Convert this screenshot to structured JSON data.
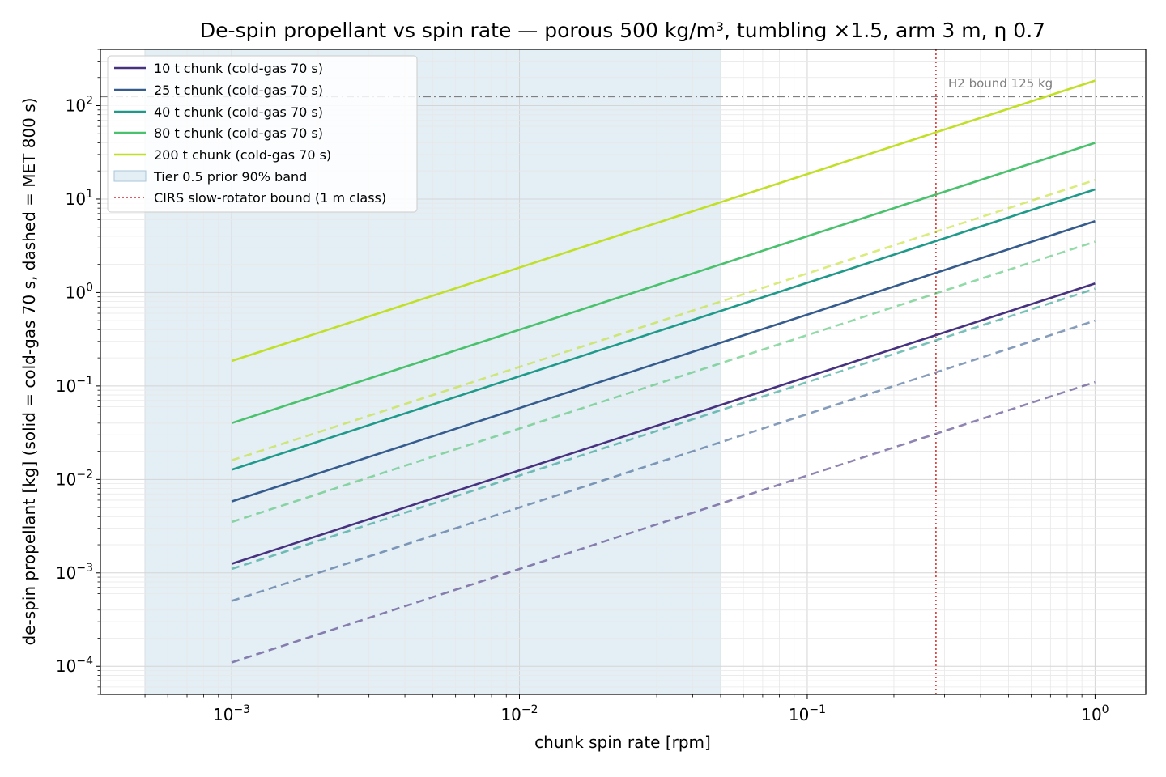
{
  "chart_data": {
    "type": "line",
    "title": "De-spin propellant vs spin rate — porous 500 kg/m³, tumbling ×1.5, arm 3 m, η 0.7",
    "xlabel": "chunk spin rate [rpm]",
    "ylabel": "de-spin propellant [kg]  (solid = cold-gas 70 s, dashed = MET 800 s)",
    "x_scale": "log",
    "y_scale": "log",
    "xlim": [
      0.00035,
      1.5
    ],
    "ylim": [
      5e-05,
      400
    ],
    "x_ticks": [
      {
        "base": "10",
        "exp": "−3",
        "value": 0.001
      },
      {
        "base": "10",
        "exp": "−2",
        "value": 0.01
      },
      {
        "base": "10",
        "exp": "−1",
        "value": 0.1
      },
      {
        "base": "10",
        "exp": "0",
        "value": 1
      }
    ],
    "y_ticks": [
      {
        "base": "10",
        "exp": "−4",
        "value": 0.0001
      },
      {
        "base": "10",
        "exp": "−3",
        "value": 0.001
      },
      {
        "base": "10",
        "exp": "−2",
        "value": 0.01
      },
      {
        "base": "10",
        "exp": "−1",
        "value": 0.1
      },
      {
        "base": "10",
        "exp": "0",
        "value": 1
      },
      {
        "base": "10",
        "exp": "1",
        "value": 10
      },
      {
        "base": "10",
        "exp": "2",
        "value": 100
      }
    ],
    "grid": true,
    "legend_position": "top-left",
    "x": [
      0.001,
      1
    ],
    "series": [
      {
        "name": "10 t chunk (cold-gas 70 s)",
        "style": "solid",
        "color": "#46327e",
        "values": [
          0.00125,
          1.25
        ]
      },
      {
        "name": "25 t chunk (cold-gas 70 s)",
        "style": "solid",
        "color": "#365c8d",
        "values": [
          0.0058,
          5.8
        ]
      },
      {
        "name": "40 t chunk (cold-gas 70 s)",
        "style": "solid",
        "color": "#1f9a8a",
        "values": [
          0.0127,
          12.7
        ]
      },
      {
        "name": "80 t chunk (cold-gas 70 s)",
        "style": "solid",
        "color": "#4ac16d",
        "values": [
          0.04,
          40
        ]
      },
      {
        "name": "200 t chunk (cold-gas 70 s)",
        "style": "solid",
        "color": "#c0df25",
        "values": [
          0.185,
          185
        ]
      },
      {
        "style": "dashed",
        "color": "#46327e",
        "values": [
          0.00011,
          0.11
        ]
      },
      {
        "style": "dashed",
        "color": "#365c8d",
        "values": [
          0.0005,
          0.5
        ]
      },
      {
        "style": "dashed",
        "color": "#1f9a8a",
        "values": [
          0.0011,
          1.1
        ]
      },
      {
        "style": "dashed",
        "color": "#4ac16d",
        "values": [
          0.0035,
          3.5
        ]
      },
      {
        "style": "dashed",
        "color": "#c0df25",
        "values": [
          0.016,
          16
        ]
      }
    ],
    "band": {
      "name": "Tier 0.5 prior 90% band",
      "x_range": [
        0.0005,
        0.05
      ],
      "color": "#d0e3ee"
    },
    "vline": {
      "name": "CIRS slow-rotator bound (1 m class)",
      "x": 0.28,
      "color": "#d62728"
    },
    "hline": {
      "label": "H2 bound 125 kg",
      "y": 125,
      "color": "#808080"
    }
  }
}
